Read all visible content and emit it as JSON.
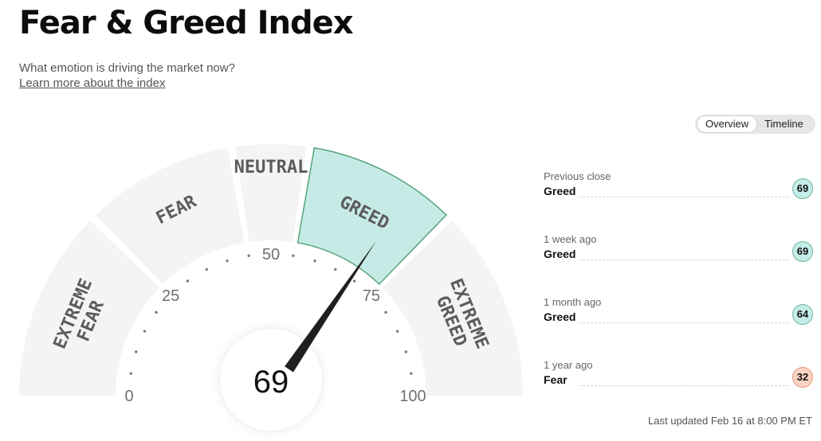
{
  "header": {
    "title": "Fear & Greed Index",
    "subtitle": "What emotion is driving the market now?",
    "learn_link": "Learn more about the index"
  },
  "view_toggle": {
    "options": [
      "Overview",
      "Timeline"
    ],
    "selected": "Overview"
  },
  "gauge": {
    "value": 69,
    "value_label": "69",
    "active_zone": "GREED",
    "zones": [
      {
        "label_lines": [
          "EXTREME",
          "FEAR"
        ],
        "range": [
          0,
          25
        ]
      },
      {
        "label_lines": [
          "FEAR"
        ],
        "range": [
          25,
          45
        ]
      },
      {
        "label_lines": [
          "NEUTRAL"
        ],
        "range": [
          45,
          55
        ]
      },
      {
        "label_lines": [
          "GREED"
        ],
        "range": [
          55,
          75
        ]
      },
      {
        "label_lines": [
          "EXTREME",
          "GREED"
        ],
        "range": [
          75,
          100
        ]
      }
    ],
    "scale_labels": [
      {
        "value": 0,
        "text": "0"
      },
      {
        "value": 25,
        "text": "25"
      },
      {
        "value": 50,
        "text": "50"
      },
      {
        "value": 75,
        "text": "75"
      },
      {
        "value": 100,
        "text": "100"
      }
    ],
    "colors": {
      "zone_fill": "#f4f4f4",
      "active_fill": "#c6ebe7",
      "active_stroke": "#56a479",
      "needle": "#1f1f1f",
      "label": "#5c5c5c"
    }
  },
  "history": [
    {
      "label": "Previous close",
      "rating": "Greed",
      "value": "69",
      "tone": "greed"
    },
    {
      "label": "1 week ago",
      "rating": "Greed",
      "value": "69",
      "tone": "greed"
    },
    {
      "label": "1 month ago",
      "rating": "Greed",
      "value": "64",
      "tone": "greed"
    },
    {
      "label": "1 year ago",
      "rating": "Fear",
      "value": "32",
      "tone": "fear"
    }
  ],
  "footer": {
    "last_updated": "Last updated Feb 16 at 8:00 PM ET"
  }
}
